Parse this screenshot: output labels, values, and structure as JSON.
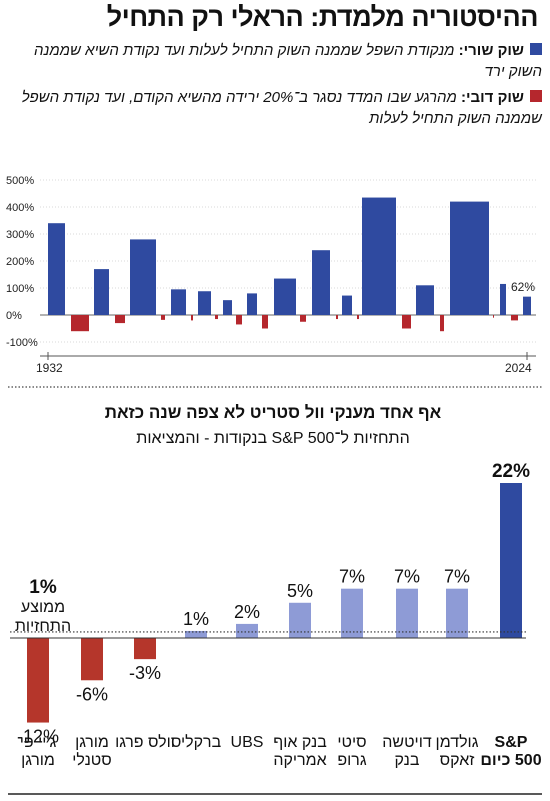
{
  "title": "ההיסטוריה מלמדת: הראלי רק התחיל",
  "legend": {
    "bull": {
      "label": "שוק שורי:",
      "text": "מנקודת השפל שממנה השוק התחיל לעלות ועד נקודת השיא שממנה השוק ירד",
      "color": "#2f4aa0"
    },
    "bear": {
      "label": "שוק דובי:",
      "text": "מהרגע שבו המדד נסגר ב־20% ירידה מהשיא הקודם, ועד נקודת השפל שממנה השוק התחיל לעלות",
      "color": "#b5272d"
    }
  },
  "chart_data": [
    {
      "type": "bar",
      "y_ticks": [
        "500%",
        "400%",
        "300%",
        "200%",
        "100%",
        "0%",
        "-100%"
      ],
      "ylim": [
        -100,
        500
      ],
      "x_labels": [
        "1932",
        "2024"
      ],
      "annotation": "62%",
      "series": [
        {
          "values": [
            340,
            170,
            280,
            95,
            88,
            55,
            80,
            135,
            240,
            72,
            435,
            110,
            420,
            115,
            68
          ]
        },
        {
          "values": [
            -60,
            -30,
            -18,
            -20,
            -15,
            -35,
            -50,
            -25,
            -15,
            -15,
            -50,
            -60,
            -10,
            -20
          ]
        }
      ]
    },
    {
      "type": "bar",
      "title": "אף אחד מענקי וול סטריט לא צפה שנה כזאת",
      "subtitle": "התחזיות ל־S&P 500 בנקודות - והמציאות",
      "categories": [
        "S&P 500 כיום",
        "גולדמן זאקס",
        "דויטשה בנק",
        "סיטי גרופ",
        "בנק אוף אמריקה",
        "UBS",
        "ברקליס",
        "וולס פרגו",
        "מורגן סטנלי",
        "ג'יי פי מורגן"
      ],
      "values": [
        22,
        7,
        7,
        7,
        5,
        2,
        1,
        -3,
        -6,
        -12
      ],
      "value_labels": [
        "22%",
        "7%",
        "7%",
        "7%",
        "5%",
        "2%",
        "1%",
        "-3%",
        "-6%",
        "-12%"
      ],
      "average": {
        "value": 1,
        "label_value": "1%",
        "label": "ממוצע התחזיות"
      },
      "colors": {
        "actual": "#2f4aa0",
        "positive": "#8e9bd6",
        "negative": "#b5362b"
      }
    }
  ]
}
